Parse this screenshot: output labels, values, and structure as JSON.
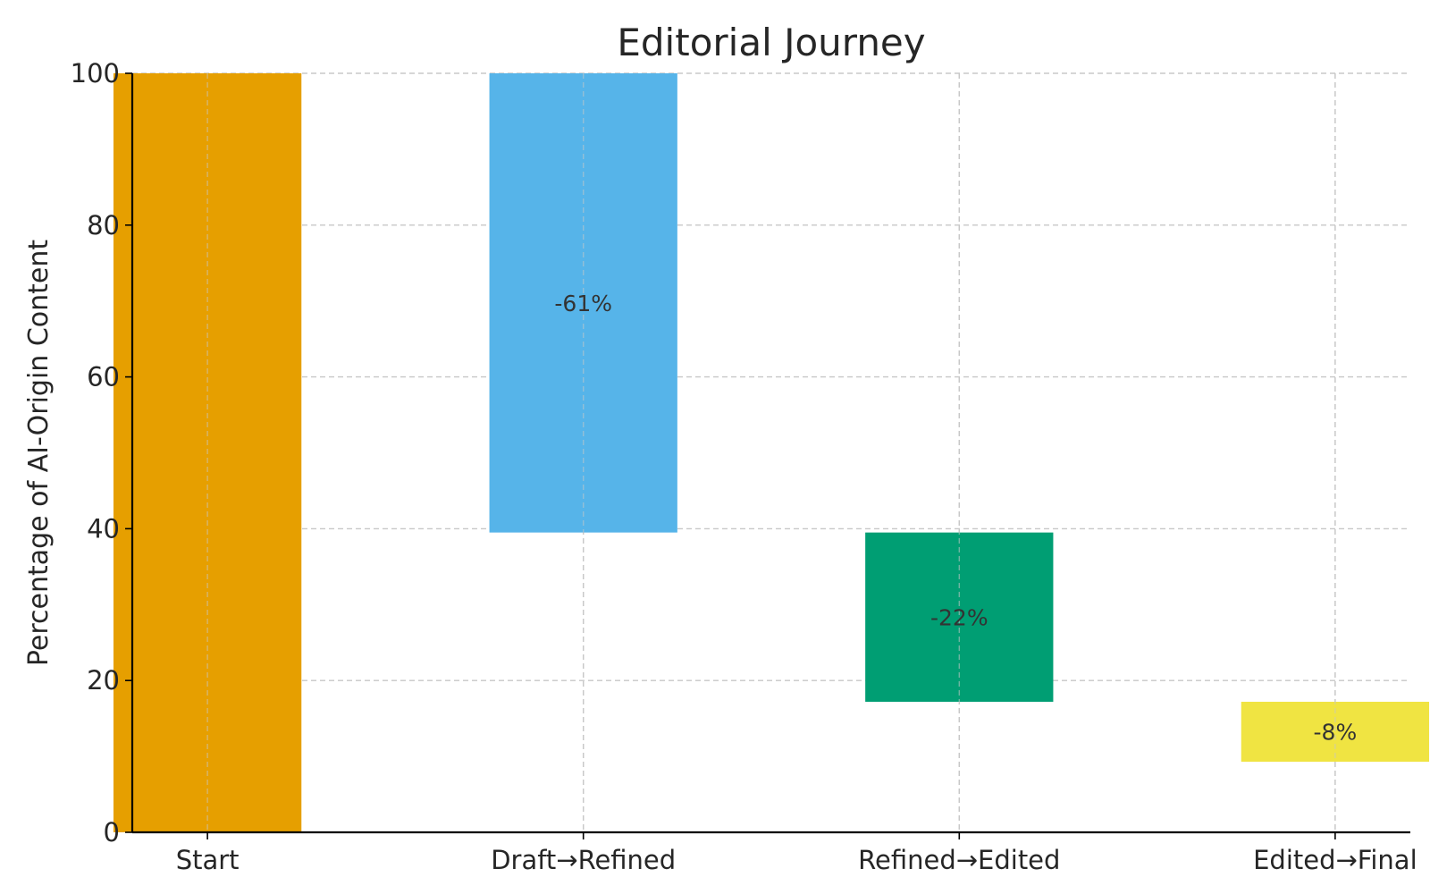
{
  "chart_data": {
    "type": "bar",
    "subtype": "waterfall",
    "title": "Editorial Journey",
    "xlabel": "",
    "ylabel": "Percentage of AI-Origin Content",
    "categories": [
      "Start",
      "Draft→Refined",
      "Refined→Edited",
      "Edited→Final"
    ],
    "bars": [
      {
        "category": "Start",
        "bottom": 0,
        "top": 100,
        "label": "",
        "color": "#E69F00"
      },
      {
        "category": "Draft→Refined",
        "bottom": 39.5,
        "top": 100,
        "label": "-61%",
        "color": "#56B4E9"
      },
      {
        "category": "Refined→Edited",
        "bottom": 17.2,
        "top": 39.5,
        "label": "-22%",
        "color": "#009E73"
      },
      {
        "category": "Edited→Final",
        "bottom": 9.3,
        "top": 17.2,
        "label": "-8%",
        "color": "#F0E442"
      }
    ],
    "ylim": [
      0,
      100
    ],
    "yticks": [
      0,
      20,
      40,
      60,
      80,
      100
    ],
    "grid": true,
    "legend": "none"
  }
}
